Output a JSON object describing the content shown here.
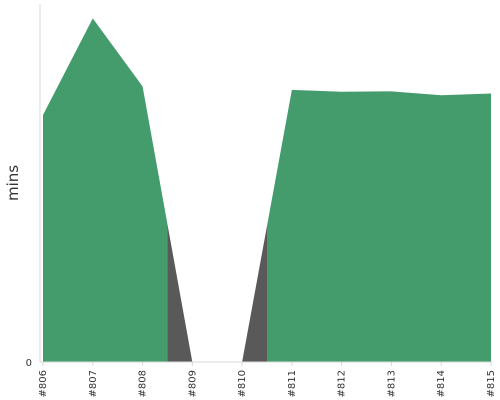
{
  "chart_data": {
    "type": "area",
    "title": "",
    "xlabel": "",
    "ylabel": "mins",
    "x": [
      "#806",
      "#807",
      "#808",
      "#809",
      "#810",
      "#811",
      "#812",
      "#813",
      "#814",
      "#815"
    ],
    "y_ticks": [
      "0"
    ],
    "ylim": [
      0,
      1
    ],
    "grid": false,
    "series": [
      {
        "color": "#449b6c",
        "values": [
          0.69,
          0.96,
          0.77,
          0,
          0,
          0.76,
          0.755,
          0.756,
          0.745,
          0.75
        ]
      }
    ],
    "gap_color": "#595959"
  }
}
